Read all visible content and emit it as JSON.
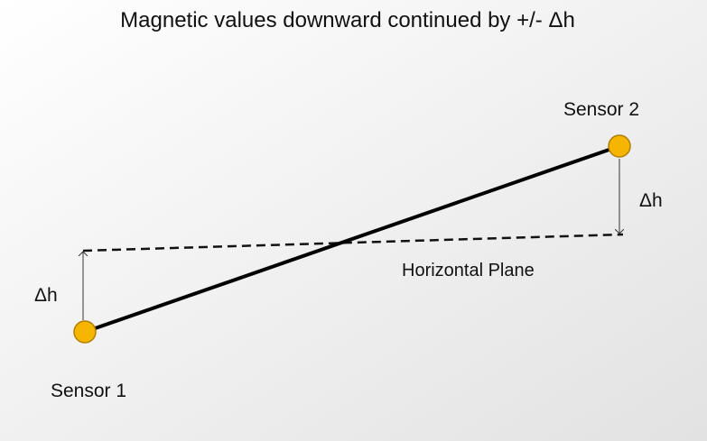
{
  "title": "Magnetic  values downward continued by +/- Δh",
  "nodes": [
    {
      "label": "Sensor 1"
    },
    {
      "label": "Sensor 2"
    }
  ],
  "labels": {
    "left_delta": "Δh",
    "right_delta": "Δh",
    "plane": "Horizontal Plane"
  }
}
